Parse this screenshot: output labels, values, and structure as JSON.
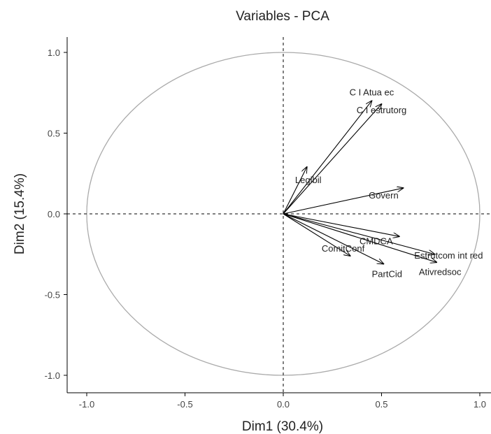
{
  "chart_data": {
    "type": "scatter",
    "title": "Variables - PCA",
    "xlabel": "Dim1 (30.4%)",
    "ylabel": "Dim2 (15.4%)",
    "xlim": [
      -1.1,
      1.05
    ],
    "ylim": [
      -1.1,
      1.1
    ],
    "xticks": [
      -1.0,
      -0.5,
      0.0,
      0.5,
      1.0
    ],
    "xtick_labels": [
      "-1.0",
      "-0.5",
      "0.0",
      "0.5",
      "1.0"
    ],
    "yticks": [
      1.0,
      0.5,
      0.0,
      -0.5,
      -1.0
    ],
    "ytick_labels": [
      "1.0",
      "0.5",
      "0.0",
      "-0.5",
      "-1.0"
    ],
    "grid": false,
    "correlation_circle": true,
    "vectors": [
      {
        "label": "C I Atua ec",
        "x": 0.45,
        "y": 0.7
      },
      {
        "label": "C I estrutorg",
        "x": 0.5,
        "y": 0.68
      },
      {
        "label": "Legibil",
        "x": 0.12,
        "y": 0.29
      },
      {
        "label": "Govern",
        "x": 0.61,
        "y": 0.16
      },
      {
        "label": "CMDCA",
        "x": 0.59,
        "y": -0.14
      },
      {
        "label": "Estrutcom int red",
        "x": 0.77,
        "y": -0.25
      },
      {
        "label": "Ativredsoc",
        "x": 0.78,
        "y": -0.3
      },
      {
        "label": "ComitConf",
        "x": 0.34,
        "y": -0.26
      },
      {
        "label": "PartCid",
        "x": 0.51,
        "y": -0.31
      }
    ],
    "colors": {
      "arrow": "#000000",
      "circle": "#aaaaaa",
      "axis": "#000000"
    }
  }
}
